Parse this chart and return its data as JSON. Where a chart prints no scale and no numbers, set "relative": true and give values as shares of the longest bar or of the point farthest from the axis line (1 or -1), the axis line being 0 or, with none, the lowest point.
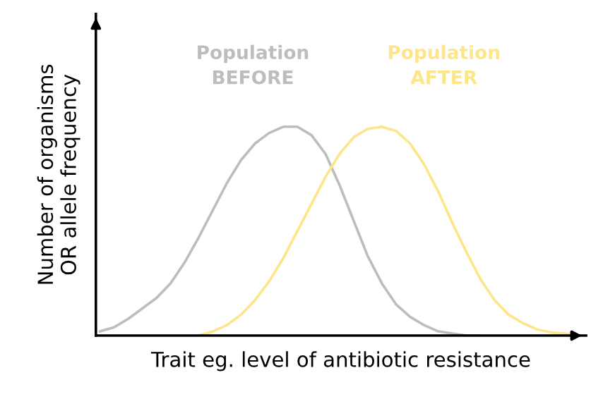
{
  "chart_data": {
    "type": "line",
    "relative": true,
    "xlabel": "Trait eg. level of antibiotic resistance",
    "ylabel": "Number of organisms\nOR allele frequency",
    "categories": [
      null,
      null,
      null,
      null,
      null,
      null,
      null,
      null,
      null,
      null,
      null,
      null,
      null,
      null,
      null,
      null,
      null,
      null,
      null,
      null,
      null,
      null,
      null,
      null,
      null,
      null,
      null,
      null,
      null,
      null,
      null,
      null,
      null,
      null,
      null
    ],
    "series": [
      {
        "name": "Population\nBEFORE",
        "color": "#bdbdbd",
        "values": [
          0.02,
          0.04,
          0.08,
          0.13,
          0.18,
          0.25,
          0.35,
          0.47,
          0.6,
          0.73,
          0.84,
          0.92,
          0.97,
          1.0,
          1.0,
          0.96,
          0.87,
          0.72,
          0.55,
          0.38,
          0.25,
          0.15,
          0.09,
          0.05,
          0.02,
          0.01,
          0,
          0,
          null,
          null,
          null,
          null,
          null,
          null,
          null
        ]
      },
      {
        "name": "Population\nAFTER",
        "color": "#fde58a",
        "values": [
          null,
          null,
          null,
          null,
          null,
          null,
          null,
          0,
          0.02,
          0.05,
          0.1,
          0.17,
          0.26,
          0.37,
          0.5,
          0.63,
          0.76,
          0.87,
          0.95,
          0.99,
          1.0,
          0.98,
          0.92,
          0.82,
          0.69,
          0.54,
          0.4,
          0.27,
          0.17,
          0.1,
          0.06,
          0.03,
          0.015,
          0.01,
          0
        ]
      }
    ],
    "marker": "none",
    "line_style": "solid",
    "legend": false
  }
}
